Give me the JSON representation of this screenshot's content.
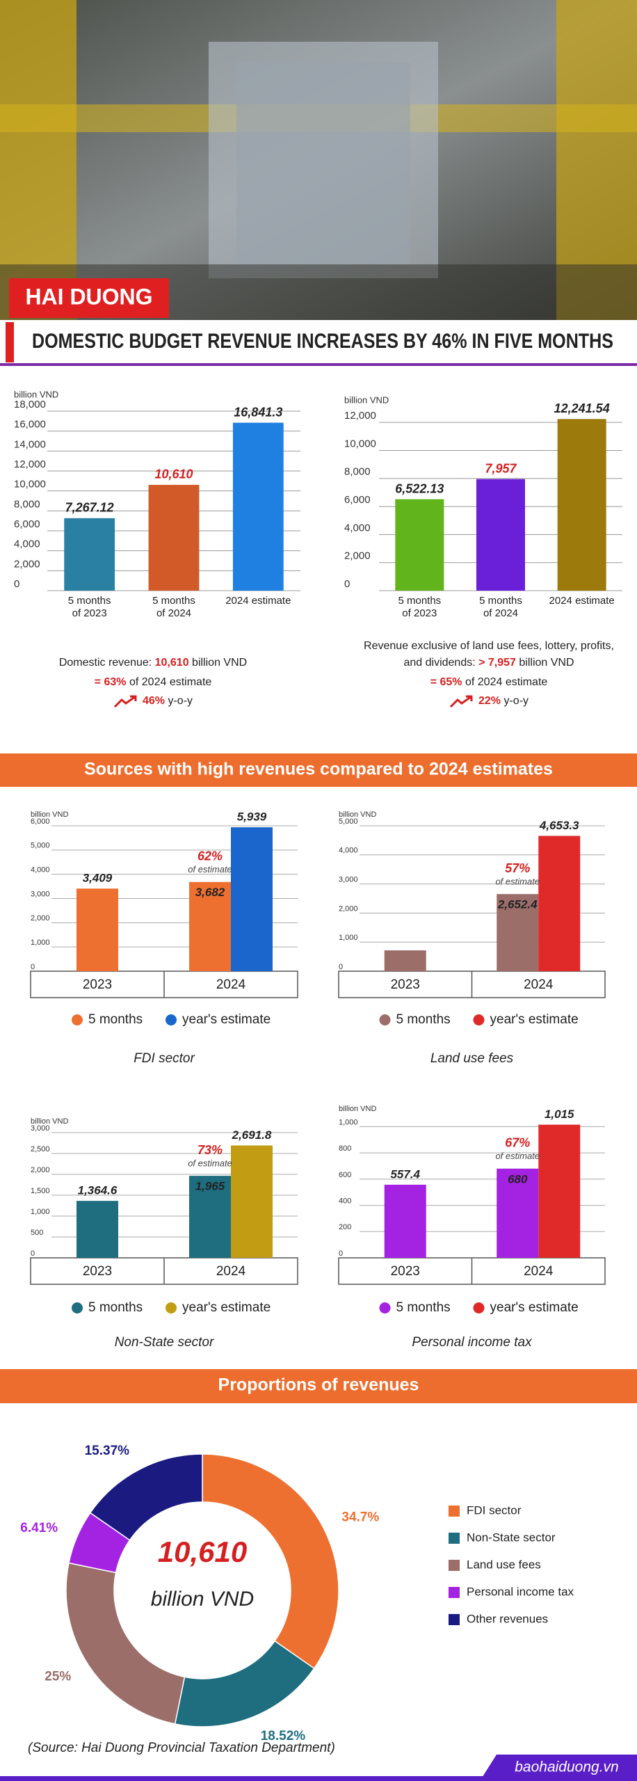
{
  "header": {
    "location": "HAI DUONG",
    "title": "DOMESTIC BUDGET REVENUE INCREASES BY 46% IN FIVE MONTHS"
  },
  "summary": {
    "left": {
      "label": "Domestic revenue:",
      "value": "10,610",
      "unit": "billion VND",
      "share": "= 63%",
      "share_text": "of 2024 estimate",
      "growth": "46%",
      "growth_text": "y-o-y"
    },
    "right": {
      "label": "Revenue exclusive of land use fees, lottery, profits,",
      "label2": "and dividends:",
      "value": "> 7,957",
      "unit": "billion VND",
      "share": "= 65%",
      "share_text": "of 2024 estimate",
      "growth": "22%",
      "growth_text": "y-o-y"
    }
  },
  "sections": [
    "Sources with high revenues compared to 2024 estimates",
    "Proportions of revenues"
  ],
  "source": "(Source: Hai Duong Provincial Taxation Department)",
  "footer": "baohaiduong.vn",
  "chart_data": [
    {
      "type": "bar",
      "ylabel": "billion VND",
      "categories": [
        "5 months\nof 2023",
        "5 months\nof 2024",
        "2024 estimate"
      ],
      "values": [
        7267.12,
        10610,
        16841.3
      ],
      "value_labels": [
        "7,267.12",
        "10,610",
        "16,841.3"
      ],
      "colors": [
        "#2a80a2",
        "#d25a28",
        "#1f80e2"
      ],
      "value_label_colors": [
        "#222222",
        "#d42020",
        "#222222"
      ],
      "ylim": [
        0,
        18000
      ],
      "yticks": [
        0,
        {
          "value": 2000,
          "label": "2,000"
        },
        {
          "value": 4000,
          "label": "4,000"
        },
        {
          "value": 6000,
          "label": "6,000"
        },
        {
          "value": 8000,
          "label": "8,000"
        },
        {
          "value": 10000,
          "label": "10,000"
        },
        {
          "value": 12000,
          "label": "12,000"
        },
        {
          "value": 14000,
          "label": "14,000"
        },
        {
          "value": 16000,
          "label": "16,000"
        },
        {
          "value": 18000,
          "label": "18,000"
        }
      ],
      "grid": true
    },
    {
      "type": "bar",
      "ylabel": "billion VND",
      "categories": [
        "5 months\nof 2023",
        "5 months\nof 2024",
        "2024 estimate"
      ],
      "values": [
        6522.13,
        7957,
        12241.54
      ],
      "value_labels": [
        "6,522.13",
        "7,957",
        "12,241.54"
      ],
      "colors": [
        "#62b41c",
        "#6a20d8",
        "#9c7a0c"
      ],
      "value_label_colors": [
        "#222222",
        "#d42020",
        "#222222"
      ],
      "ylim": [
        0,
        13000
      ],
      "yticks": [
        0,
        {
          "value": 2000,
          "label": "2,000"
        },
        {
          "value": 4000,
          "label": "4,000"
        },
        {
          "value": 6000,
          "label": "6,000"
        },
        {
          "value": 8000,
          "label": "8,000"
        },
        {
          "value": 10000,
          "label": "10,000"
        },
        {
          "value": 12000,
          "label": "12,000"
        }
      ],
      "grid": true
    },
    {
      "type": "grouped_bar",
      "title": "FDI sector",
      "ylabel": "billion VND",
      "categories": [
        "2023",
        "2024"
      ],
      "series": [
        {
          "name": "5 months",
          "color": "#ee7030",
          "values": [
            3409,
            3682
          ],
          "value_labels": [
            "3,409",
            "3,682"
          ]
        },
        {
          "name": "year's estimate",
          "color": "#1a66cc",
          "values": [
            null,
            5939
          ],
          "value_labels": [
            null,
            "5,939"
          ]
        }
      ],
      "annotations": [
        "62%",
        "of estimate"
      ],
      "ylim": [
        0,
        6000
      ],
      "yticks": [
        0,
        {
          "value": 1000,
          "label": "1,000"
        },
        {
          "value": 2000,
          "label": "2,000"
        },
        {
          "value": 3000,
          "label": "3,000"
        },
        {
          "value": 4000,
          "label": "4,000"
        },
        {
          "value": 5000,
          "label": "5,000"
        },
        {
          "value": 6000,
          "label": "6,000"
        }
      ],
      "grid": true
    },
    {
      "type": "grouped_bar",
      "title": "Land use fees",
      "ylabel": "billion VND",
      "categories": [
        "2023",
        "2024"
      ],
      "series": [
        {
          "name": "5 months",
          "color": "#9c6e6a",
          "values": [
            716.9,
            2652.4
          ],
          "value_labels": [
            null,
            "2,652.4"
          ]
        },
        {
          "name": "year's estimate",
          "color": "#e02a2a",
          "values": [
            null,
            4653.3
          ],
          "value_labels": [
            null,
            "4,653.3"
          ]
        }
      ],
      "annotations": [
        "57%",
        "of estimate"
      ],
      "ylim": [
        0,
        5000
      ],
      "yticks": [
        0,
        {
          "value": 1000,
          "label": "1,000"
        },
        {
          "value": 2000,
          "label": "2,000"
        },
        {
          "value": 3000,
          "label": "3,000"
        },
        {
          "value": 4000,
          "label": "4,000"
        },
        {
          "value": 5000,
          "label": "5,000"
        }
      ],
      "grid": true
    },
    {
      "type": "grouped_bar",
      "title": "Non-State sector",
      "ylabel": "billion VND",
      "categories": [
        "2023",
        "2024"
      ],
      "series": [
        {
          "name": "5 months",
          "color": "#1e6e80",
          "values": [
            1364.6,
            1965
          ],
          "value_labels": [
            "1,364.6",
            "1,965"
          ]
        },
        {
          "name": "year's estimate",
          "color": "#c29c12",
          "values": [
            null,
            2691.8
          ],
          "value_labels": [
            null,
            "2,691.8"
          ]
        }
      ],
      "annotations": [
        "73%",
        "of estimate"
      ],
      "ylim": [
        0,
        3000
      ],
      "yticks": [
        0,
        500,
        {
          "value": 1000,
          "label": "1,000"
        },
        {
          "value": 1500,
          "label": "1,500"
        },
        {
          "value": 2000,
          "label": "2,000"
        },
        {
          "value": 2500,
          "label": "2,500"
        },
        {
          "value": 3000,
          "label": "3,000"
        }
      ],
      "grid": true
    },
    {
      "type": "grouped_bar",
      "title": "Personal income tax",
      "ylabel": "billion VND",
      "categories": [
        "2023",
        "2024"
      ],
      "series": [
        {
          "name": "5 months",
          "color": "#a422e2",
          "values": [
            557.4,
            680
          ]
        },
        {
          "name": "year's estimate",
          "color": "#e02a2a",
          "values": [
            null,
            1015
          ],
          "value_labels": [
            null,
            "1,015"
          ]
        }
      ],
      "annotations": [
        "67%",
        "of estimate"
      ],
      "ylim": [
        0,
        1050
      ],
      "yticks": [
        0,
        200,
        400,
        600,
        800,
        {
          "value": 1000,
          "label": "1,000"
        }
      ],
      "grid": true
    },
    {
      "type": "pie",
      "center_value": "10,610",
      "center_label": "billion VND",
      "categories": [
        "FDI sector",
        "Non-State sector",
        "Land use fees",
        "Personal income tax",
        "Other revenues"
      ],
      "values": [
        34.7,
        18.52,
        25,
        6.41,
        15.37
      ],
      "value_labels": [
        "34.7%",
        "18.52%",
        "25%",
        "6.41%",
        "15.37%"
      ],
      "colors": [
        "#ee7030",
        "#1e6e80",
        "#9c6e6a",
        "#a422e2",
        "#1a1a80"
      ]
    }
  ]
}
